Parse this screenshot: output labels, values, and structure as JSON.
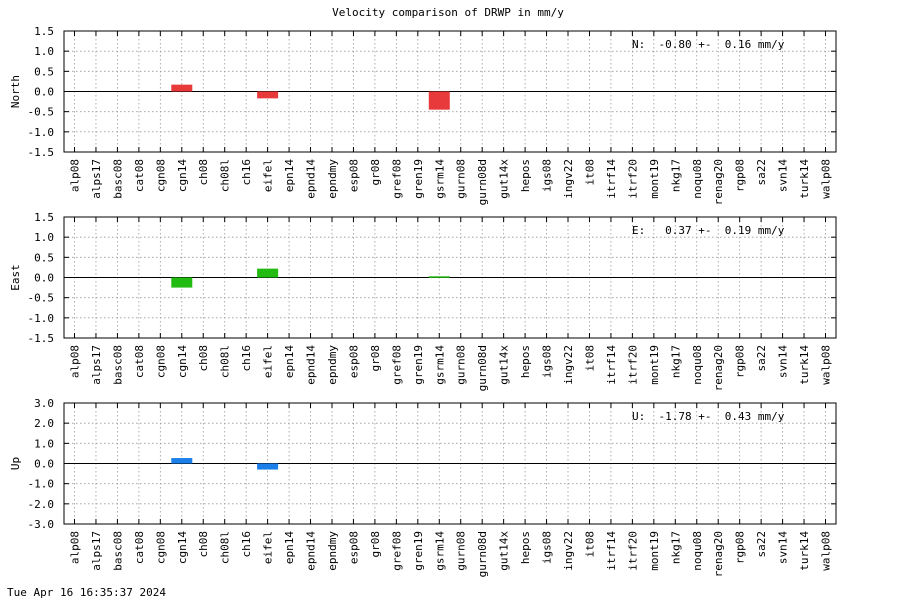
{
  "footer": {
    "timestamp": "Tue Apr 16 16:35:37 2024"
  },
  "chart_data": {
    "type": "bar",
    "title": "Velocity comparison of DRWP in mm/y",
    "categories": [
      "alp08",
      "alps17",
      "basc08",
      "cat08",
      "cgn08",
      "cgn14",
      "ch08",
      "ch08l",
      "ch16",
      "eifel",
      "epn14",
      "epnd14",
      "epndmy",
      "esp08",
      "gr08",
      "gref08",
      "gren19",
      "gsrm14",
      "gurn08",
      "gurn08d",
      "gut14x",
      "hepos",
      "igs08",
      "ingv22",
      "it08",
      "itrf14",
      "itrf20",
      "mont19",
      "nkg17",
      "noqu08",
      "renag20",
      "rgp08",
      "sa22",
      "svn14",
      "turk14",
      "walp08"
    ],
    "grid": true,
    "panels": [
      {
        "name": "north-panel",
        "ylabel": "North",
        "ylim": [
          -1.5,
          1.5
        ],
        "yticks": [
          1.5,
          1.0,
          0.5,
          0.0,
          -0.5,
          -1.0,
          -1.5
        ],
        "ytick_labels": [
          "1.5",
          "1.0",
          "0.5",
          "0.0",
          "-0.5",
          "-1.0",
          "-1.5"
        ],
        "color": "#e83a3a",
        "annotation": "N:  -0.80 +-  0.16 mm/y",
        "values": [
          0,
          0,
          0,
          0,
          0,
          0.17,
          0,
          0,
          0,
          -0.17,
          0,
          0,
          0,
          0,
          0,
          0,
          0,
          -0.45,
          0,
          0,
          0,
          0,
          0,
          0,
          0,
          0,
          0,
          0,
          0,
          0,
          0,
          0,
          0,
          0,
          0,
          0
        ]
      },
      {
        "name": "east-panel",
        "ylabel": "East",
        "ylim": [
          -1.5,
          1.5
        ],
        "yticks": [
          1.5,
          1.0,
          0.5,
          0.0,
          -0.5,
          -1.0,
          -1.5
        ],
        "ytick_labels": [
          "1.5",
          "1.0",
          "0.5",
          "0.0",
          "-0.5",
          "-1.0",
          "-1.5"
        ],
        "color": "#22bb11",
        "annotation": "E:   0.37 +-  0.19 mm/y",
        "values": [
          0,
          0,
          0,
          0,
          0,
          -0.25,
          0,
          0,
          0,
          0.22,
          0,
          0,
          0,
          0,
          0,
          0,
          0,
          0.03,
          0,
          0,
          0,
          0,
          0,
          0,
          0,
          0,
          0,
          0,
          0,
          0,
          0,
          0,
          0,
          0,
          0,
          0
        ]
      },
      {
        "name": "up-panel",
        "ylabel": "Up",
        "ylim": [
          -3.0,
          3.0
        ],
        "yticks": [
          3.0,
          2.0,
          1.0,
          0.0,
          -1.0,
          -2.0,
          -3.0
        ],
        "ytick_labels": [
          "3.0",
          "2.0",
          "1.0",
          "0.0",
          "-1.0",
          "-2.0",
          "-3.0"
        ],
        "color": "#1a7fe8",
        "annotation": "U:  -1.78 +-  0.43 mm/y",
        "values": [
          0,
          0,
          0,
          0,
          0,
          0.27,
          0,
          0,
          0,
          -0.3,
          0,
          0,
          0,
          0,
          0,
          0,
          0,
          0,
          0,
          0,
          0,
          0,
          0,
          0,
          0,
          0,
          0,
          0,
          0,
          0,
          0,
          0,
          0,
          0,
          0,
          0
        ]
      }
    ]
  }
}
